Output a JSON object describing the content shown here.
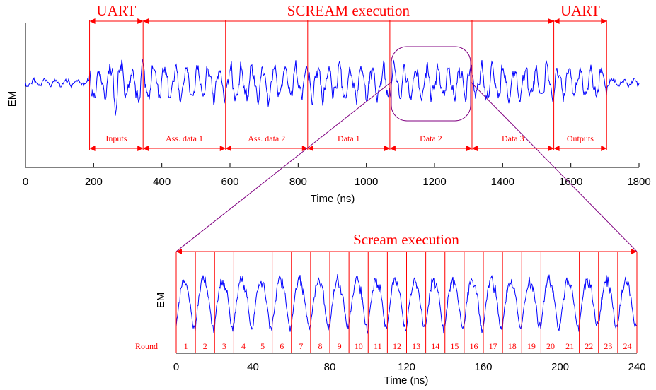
{
  "chart_data": [
    {
      "type": "line",
      "xlabel": "Time (ns)",
      "ylabel": "EM",
      "xlim": [
        0,
        1800
      ],
      "xticks": [
        "0",
        "200",
        "400",
        "600",
        "800",
        "1000",
        "1200",
        "1400",
        "1600",
        "1800"
      ],
      "series_color": "#0000ff",
      "headers": [
        {
          "text": "UART",
          "start": 188,
          "end": 345
        },
        {
          "text": "SCREAM execution",
          "start": 345,
          "end": 1550
        },
        {
          "text": "UART",
          "start": 1550,
          "end": 1705
        }
      ],
      "segments": [
        {
          "label": "Inputs",
          "start": 188,
          "end": 345
        },
        {
          "label": "Ass. data 1",
          "start": 345,
          "end": 587
        },
        {
          "label": "Ass. data 2",
          "start": 587,
          "end": 828
        },
        {
          "label": "Data 1",
          "start": 828,
          "end": 1069
        },
        {
          "label": "Data 2",
          "start": 1069,
          "end": 1310
        },
        {
          "label": "Data 3",
          "start": 1310,
          "end": 1550
        },
        {
          "label": "Outputs",
          "start": 1550,
          "end": 1705
        }
      ]
    },
    {
      "type": "line",
      "title": "Scream execution",
      "xlabel": "Time (ns)",
      "ylabel": "EM",
      "xlim": [
        0,
        240
      ],
      "xticks": [
        "0",
        "40",
        "80",
        "120",
        "160",
        "200",
        "240"
      ],
      "series_color": "#0000ff",
      "round_label": "Round",
      "rounds": [
        "1",
        "2",
        "3",
        "4",
        "5",
        "6",
        "7",
        "8",
        "9",
        "10",
        "11",
        "12",
        "13",
        "14",
        "15",
        "16",
        "17",
        "18",
        "19",
        "20",
        "21",
        "22",
        "23",
        "24"
      ]
    }
  ],
  "colors": {
    "signal": "#0000ff",
    "annotation": "#ff0000",
    "zoom": "#800080"
  }
}
